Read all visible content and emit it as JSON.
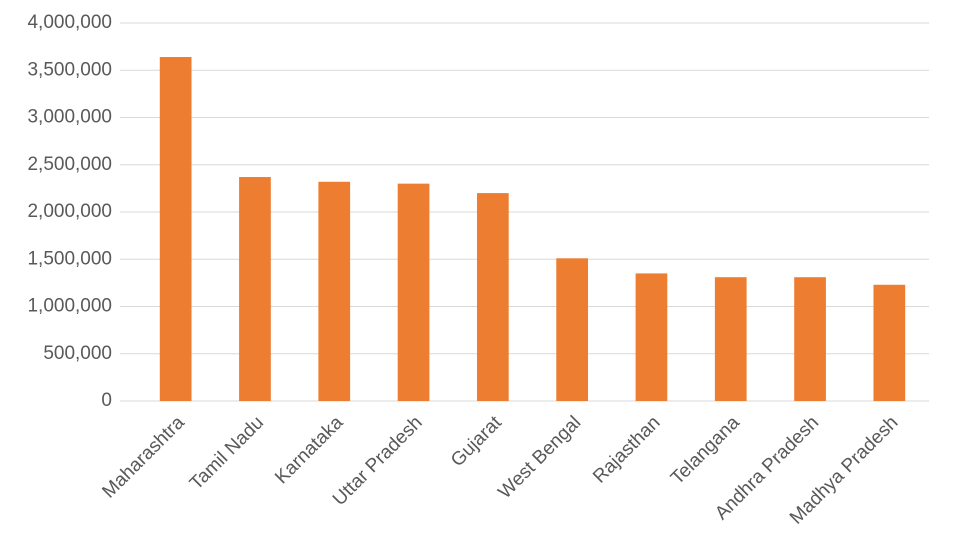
{
  "chart_data": {
    "type": "bar",
    "categories": [
      "Maharashtra",
      "Tamil Nadu",
      "Karnataka",
      "Uttar Pradesh",
      "Gujarat",
      "West Bengal",
      "Rajasthan",
      "Telangana",
      "Andhra Pradesh",
      "Madhya Pradesh"
    ],
    "values": [
      3640000,
      2370000,
      2320000,
      2300000,
      2200000,
      1510000,
      1350000,
      1310000,
      1310000,
      1230000
    ],
    "color": "#ed7d31",
    "ylim": [
      0,
      4000000
    ],
    "yticks": [
      0,
      {
        "value": 500000,
        "label": "500,000"
      },
      {
        "value": 1000000,
        "label": "1,000,000"
      },
      {
        "value": 1500000,
        "label": "1,500,000"
      },
      {
        "value": 2000000,
        "label": "2,000,000"
      },
      {
        "value": 2500000,
        "label": "2,500,000"
      },
      {
        "value": 3000000,
        "label": "3,000,000"
      },
      {
        "value": 3500000,
        "label": "3,500,000"
      },
      {
        "value": 4000000,
        "label": "4,000,000"
      }
    ],
    "grid": true
  }
}
